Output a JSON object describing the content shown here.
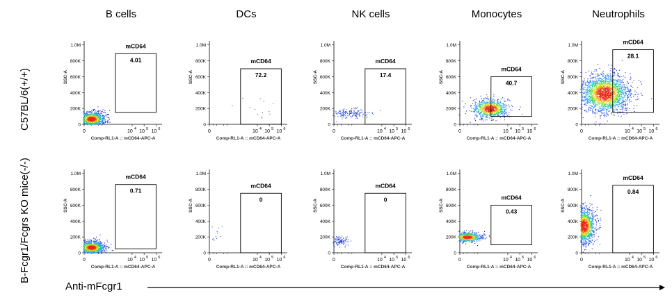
{
  "columns": [
    "B cells",
    "DCs",
    "NK cells",
    "Monocytes",
    "Neutrophils"
  ],
  "rows": [
    "C57BL/6(+/+)",
    "B-Fcgr1/Fcgrs KO mice(-/-)"
  ],
  "bottom_label": "Anti-mFcgr1",
  "chart_data": {
    "type": "scatter",
    "subtype": "flow-cytometry-density-dotplot",
    "xlabel": "Comp-RL1-A :: mCD64-APC-A",
    "ylabel": "SSC-A",
    "x_ticks": [
      "0",
      "10^4",
      "10^5",
      "10^6"
    ],
    "y_ticks": [
      "0",
      "200K",
      "400K",
      "600K",
      "800K",
      "1.0M"
    ],
    "gate_name": "mCD64",
    "panels": [
      {
        "row": 0,
        "col": 0,
        "population": "B cells",
        "genotype": "C57BL/6(+/+)",
        "gate_percent": "4.01",
        "gate": {
          "x": [
            2.6,
            6.0
          ],
          "y": [
            150000,
            890000
          ]
        }
      },
      {
        "row": 0,
        "col": 1,
        "population": "DCs",
        "genotype": "C57BL/6(+/+)",
        "gate_percent": "72.2",
        "gate": {
          "x": [
            2.6,
            6.0
          ],
          "y": [
            0,
            700000
          ]
        }
      },
      {
        "row": 0,
        "col": 2,
        "population": "NK cells",
        "genotype": "C57BL/6(+/+)",
        "gate_percent": "17.4",
        "gate": {
          "x": [
            2.6,
            6.0
          ],
          "y": [
            0,
            700000
          ]
        }
      },
      {
        "row": 0,
        "col": 3,
        "population": "Monocytes",
        "genotype": "C57BL/6(+/+)",
        "gate_percent": "40.7",
        "gate": {
          "x": [
            2.6,
            6.0
          ],
          "y": [
            100000,
            600000
          ]
        }
      },
      {
        "row": 0,
        "col": 4,
        "population": "Neutrophils",
        "genotype": "C57BL/6(+/+)",
        "gate_percent": "28.1",
        "gate": {
          "x": [
            2.6,
            6.0
          ],
          "y": [
            150000,
            940000
          ]
        }
      },
      {
        "row": 1,
        "col": 0,
        "population": "B cells",
        "genotype": "B-Fcgr1/Fcgrs KO mice(-/-)",
        "gate_percent": "0.71",
        "gate": {
          "x": [
            2.6,
            6.0
          ],
          "y": [
            50000,
            860000
          ]
        }
      },
      {
        "row": 1,
        "col": 1,
        "population": "DCs",
        "genotype": "B-Fcgr1/Fcgrs KO mice(-/-)",
        "gate_percent": "0",
        "gate": {
          "x": [
            2.6,
            6.0
          ],
          "y": [
            0,
            750000
          ]
        }
      },
      {
        "row": 1,
        "col": 2,
        "population": "NK cells",
        "genotype": "B-Fcgr1/Fcgrs KO mice(-/-)",
        "gate_percent": "0",
        "gate": {
          "x": [
            2.6,
            6.0
          ],
          "y": [
            0,
            750000
          ]
        }
      },
      {
        "row": 1,
        "col": 3,
        "population": "Monocytes",
        "genotype": "B-Fcgr1/Fcgrs KO mice(-/-)",
        "gate_percent": "0.43",
        "gate": {
          "x": [
            2.6,
            6.0
          ],
          "y": [
            100000,
            600000
          ]
        }
      },
      {
        "row": 1,
        "col": 4,
        "population": "Neutrophils",
        "genotype": "B-Fcgr1/Fcgrs KO mice(-/-)",
        "gate_percent": "0.84",
        "gate": {
          "x": [
            2.6,
            6.0
          ],
          "y": [
            0,
            850000
          ]
        }
      }
    ]
  }
}
